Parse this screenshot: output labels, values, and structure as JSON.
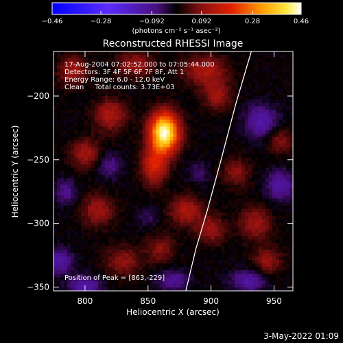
{
  "chart_data": {
    "type": "heatmap",
    "title": "Reconstructed RHESSI Image",
    "xlabel": "Heliocentric X (arcsec)",
    "ylabel": "Heliocentric Y (arcsec)",
    "xlim": [
      775,
      965
    ],
    "ylim": [
      -353,
      -165
    ],
    "x_ticks": [
      800,
      850,
      900,
      950
    ],
    "y_ticks": [
      -200,
      -250,
      -300,
      -350
    ],
    "x_tick_labels": [
      "800",
      "850",
      "900",
      "950"
    ],
    "y_tick_labels": [
      "−200",
      "−250",
      "−300",
      "−350"
    ],
    "colorbar": {
      "range": [
        -0.46,
        0.46
      ],
      "ticks": [
        -0.46,
        -0.28,
        -0.092,
        0.092,
        0.28,
        0.46
      ],
      "tick_labels": [
        "−0.46",
        "−0.28",
        "−0.092",
        "0.092",
        "0.28",
        "0.46"
      ],
      "unit_label": "(photons cm⁻² s⁻¹ asec⁻²)",
      "colormap": "blue-purple-red-yellow-white"
    },
    "annotations": [
      "17-Aug-2004 07:02:52.000 to 07:05:44.000",
      "Detectors: 3F 4F 5F 6F 7F 8F, Att 1",
      "Energy Range: 6.0 - 12.0 keV",
      "Clean     Total counts: 3.73E+03"
    ],
    "peak_label": "Position of Peak = [863,-229]",
    "peak": {
      "x": 863,
      "y": -229,
      "value": 0.46
    },
    "limb_curve": [
      [
        932,
        -165
      ],
      [
        920,
        -205
      ],
      [
        908,
        -250
      ],
      [
        897,
        -290
      ],
      [
        888,
        -320
      ],
      [
        880,
        -353
      ]
    ],
    "blobs": [
      {
        "x": 863,
        "y": -229,
        "sx": 8,
        "sy": 11,
        "a": 0.46
      },
      {
        "x": 855,
        "y": -255,
        "sx": 7,
        "sy": 10,
        "a": 0.18
      },
      {
        "x": 820,
        "y": -215,
        "sx": 9,
        "sy": 9,
        "a": 0.13
      },
      {
        "x": 800,
        "y": -245,
        "sx": 8,
        "sy": 8,
        "a": 0.12
      },
      {
        "x": 790,
        "y": -180,
        "sx": 8,
        "sy": 8,
        "a": 0.12
      },
      {
        "x": 840,
        "y": -175,
        "sx": 10,
        "sy": 7,
        "a": 0.11
      },
      {
        "x": 895,
        "y": -180,
        "sx": 12,
        "sy": 8,
        "a": 0.13
      },
      {
        "x": 905,
        "y": -200,
        "sx": 8,
        "sy": 8,
        "a": 0.11
      },
      {
        "x": 880,
        "y": -290,
        "sx": 9,
        "sy": 8,
        "a": 0.13
      },
      {
        "x": 900,
        "y": -305,
        "sx": 8,
        "sy": 8,
        "a": 0.11
      },
      {
        "x": 935,
        "y": -300,
        "sx": 9,
        "sy": 9,
        "a": 0.11
      },
      {
        "x": 945,
        "y": -330,
        "sx": 8,
        "sy": 8,
        "a": 0.1
      },
      {
        "x": 955,
        "y": -235,
        "sx": 7,
        "sy": 7,
        "a": 0.09
      },
      {
        "x": 830,
        "y": -330,
        "sx": 10,
        "sy": 8,
        "a": 0.1
      },
      {
        "x": 860,
        "y": -320,
        "sx": 8,
        "sy": 8,
        "a": 0.09
      },
      {
        "x": 810,
        "y": -290,
        "sx": 9,
        "sy": 9,
        "a": 0.11
      },
      {
        "x": 920,
        "y": -260,
        "sx": 8,
        "sy": 8,
        "a": 0.09
      },
      {
        "x": 780,
        "y": -330,
        "sx": 7,
        "sy": 7,
        "a": -0.12
      },
      {
        "x": 800,
        "y": -350,
        "sx": 9,
        "sy": 6,
        "a": -0.13
      },
      {
        "x": 940,
        "y": -220,
        "sx": 9,
        "sy": 9,
        "a": -0.13
      },
      {
        "x": 955,
        "y": -270,
        "sx": 8,
        "sy": 8,
        "a": -0.12
      },
      {
        "x": 930,
        "y": -345,
        "sx": 10,
        "sy": 6,
        "a": -0.12
      },
      {
        "x": 870,
        "y": -345,
        "sx": 9,
        "sy": 6,
        "a": -0.1
      },
      {
        "x": 820,
        "y": -255,
        "sx": 7,
        "sy": 7,
        "a": -0.08
      },
      {
        "x": 785,
        "y": -275,
        "sx": 6,
        "sy": 7,
        "a": -0.09
      },
      {
        "x": 890,
        "y": -260,
        "sx": 6,
        "sy": 6,
        "a": -0.06
      },
      {
        "x": 850,
        "y": -295,
        "sx": 6,
        "sy": 6,
        "a": -0.05
      }
    ]
  },
  "footer": {
    "timestamp": "3-May-2022 01:09"
  }
}
